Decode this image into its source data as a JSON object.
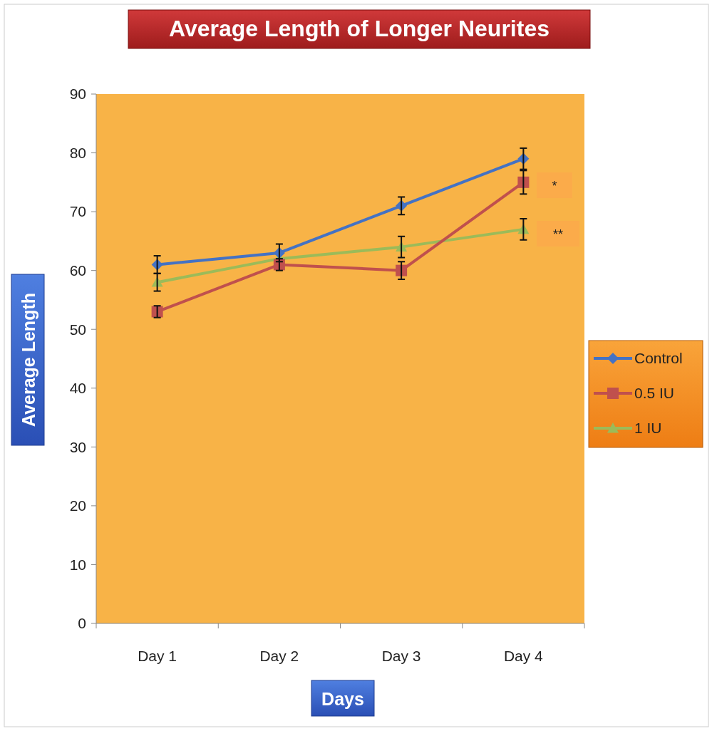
{
  "chart_data": {
    "type": "line",
    "title": "Average Length of Longer Neurites",
    "xlabel": "Days",
    "ylabel": "Average Length",
    "categories": [
      "Day 1",
      "Day 2",
      "Day 3",
      "Day 4"
    ],
    "series": [
      {
        "name": "Control",
        "color": "#4472c4",
        "marker": "diamond",
        "values": [
          61,
          63,
          71,
          79
        ],
        "errors": [
          1.5,
          1.5,
          1.5,
          1.8
        ]
      },
      {
        "name": "0.5 IU",
        "color": "#c0504d",
        "marker": "square",
        "values": [
          53,
          61,
          60,
          75
        ],
        "errors": [
          1,
          1,
          1.5,
          2
        ]
      },
      {
        "name": "1 IU",
        "color": "#9bbb59",
        "marker": "triangle",
        "values": [
          58,
          62,
          64,
          67
        ],
        "errors": [
          1.5,
          1,
          1.8,
          1.8
        ]
      }
    ],
    "ylim": [
      0,
      90
    ],
    "yticks": [
      0,
      10,
      20,
      30,
      40,
      50,
      60,
      70,
      80,
      90
    ],
    "grid": false,
    "legend": "right",
    "annotations": [
      "*",
      "**"
    ]
  }
}
